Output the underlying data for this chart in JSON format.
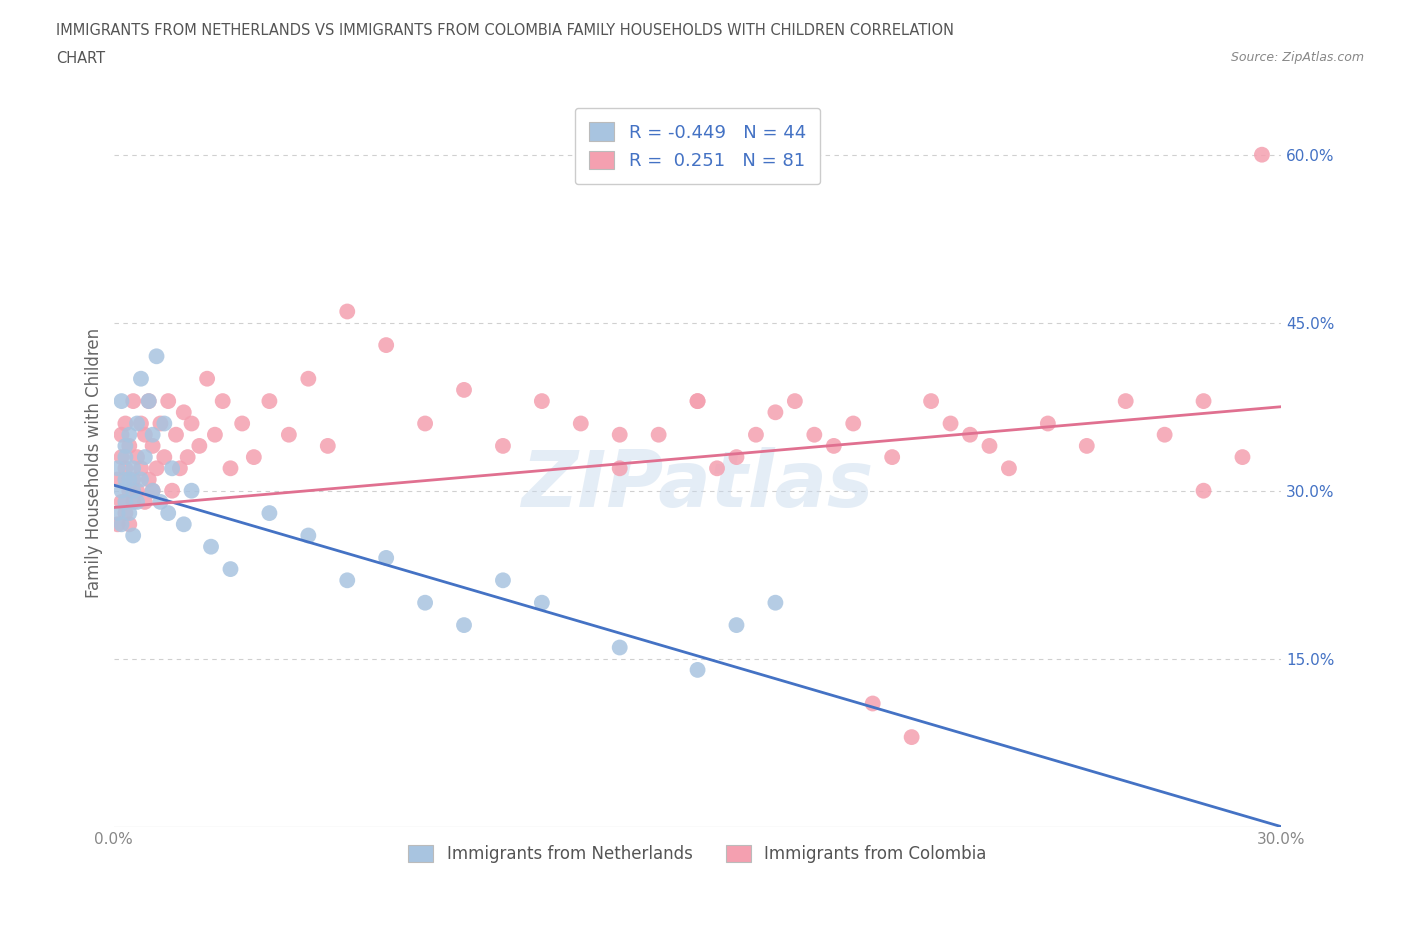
{
  "title_line1": "IMMIGRANTS FROM NETHERLANDS VS IMMIGRANTS FROM COLOMBIA FAMILY HOUSEHOLDS WITH CHILDREN CORRELATION",
  "title_line2": "CHART",
  "source": "Source: ZipAtlas.com",
  "ylabel": "Family Households with Children",
  "xlim": [
    0.0,
    0.3
  ],
  "ylim": [
    0.0,
    0.65
  ],
  "xticks": [
    0.0,
    0.05,
    0.1,
    0.15,
    0.2,
    0.25,
    0.3
  ],
  "xticklabels": [
    "0.0%",
    "",
    "",
    "",
    "",
    "",
    "30.0%"
  ],
  "yticks": [
    0.0,
    0.15,
    0.3,
    0.45,
    0.6
  ],
  "ytick_right_labels": [
    "",
    "15.0%",
    "30.0%",
    "45.0%",
    "60.0%"
  ],
  "netherlands_R": -0.449,
  "netherlands_N": 44,
  "colombia_R": 0.251,
  "colombia_N": 81,
  "netherlands_color": "#a8c4e0",
  "colombia_color": "#f4a0b0",
  "netherlands_line_color": "#4472c4",
  "colombia_line_color": "#e07090",
  "legend_netherlands": "Immigrants from Netherlands",
  "legend_colombia": "Immigrants from Colombia",
  "watermark": "ZIPatlas",
  "background_color": "#ffffff",
  "grid_color": "#d0d0d0",
  "title_color": "#555555",
  "axis_label_color": "#666666",
  "tick_color": "#888888",
  "right_tick_color": "#4472c4",
  "legend_text_color": "#4472c4",
  "nl_trend_x0": 0.0,
  "nl_trend_y0": 0.305,
  "nl_trend_x1": 0.3,
  "nl_trend_y1": 0.0,
  "co_trend_x0": 0.0,
  "co_trend_y0": 0.285,
  "co_trend_x1": 0.3,
  "co_trend_y1": 0.375,
  "netherlands_x": [
    0.001,
    0.001,
    0.002,
    0.002,
    0.002,
    0.003,
    0.003,
    0.003,
    0.003,
    0.004,
    0.004,
    0.004,
    0.005,
    0.005,
    0.005,
    0.006,
    0.006,
    0.007,
    0.007,
    0.008,
    0.009,
    0.01,
    0.01,
    0.011,
    0.012,
    0.013,
    0.014,
    0.015,
    0.018,
    0.02,
    0.025,
    0.03,
    0.04,
    0.05,
    0.06,
    0.07,
    0.08,
    0.09,
    0.1,
    0.11,
    0.13,
    0.15,
    0.16,
    0.17
  ],
  "netherlands_y": [
    0.32,
    0.28,
    0.3,
    0.38,
    0.27,
    0.31,
    0.34,
    0.29,
    0.33,
    0.28,
    0.31,
    0.35,
    0.3,
    0.26,
    0.32,
    0.29,
    0.36,
    0.31,
    0.4,
    0.33,
    0.38,
    0.3,
    0.35,
    0.42,
    0.29,
    0.36,
    0.28,
    0.32,
    0.27,
    0.3,
    0.25,
    0.23,
    0.28,
    0.26,
    0.22,
    0.24,
    0.2,
    0.18,
    0.22,
    0.2,
    0.16,
    0.14,
    0.18,
    0.2
  ],
  "colombia_x": [
    0.001,
    0.001,
    0.002,
    0.002,
    0.002,
    0.003,
    0.003,
    0.003,
    0.004,
    0.004,
    0.004,
    0.005,
    0.005,
    0.005,
    0.006,
    0.006,
    0.007,
    0.007,
    0.008,
    0.008,
    0.009,
    0.009,
    0.01,
    0.01,
    0.011,
    0.012,
    0.013,
    0.014,
    0.015,
    0.016,
    0.017,
    0.018,
    0.019,
    0.02,
    0.022,
    0.024,
    0.026,
    0.028,
    0.03,
    0.033,
    0.036,
    0.04,
    0.045,
    0.05,
    0.055,
    0.06,
    0.07,
    0.08,
    0.09,
    0.1,
    0.11,
    0.12,
    0.13,
    0.14,
    0.15,
    0.16,
    0.17,
    0.18,
    0.19,
    0.2,
    0.21,
    0.22,
    0.23,
    0.24,
    0.25,
    0.26,
    0.27,
    0.28,
    0.13,
    0.15,
    0.155,
    0.165,
    0.175,
    0.185,
    0.195,
    0.205,
    0.215,
    0.225,
    0.28,
    0.29,
    0.295
  ],
  "colombia_y": [
    0.31,
    0.27,
    0.33,
    0.29,
    0.35,
    0.28,
    0.32,
    0.36,
    0.3,
    0.34,
    0.27,
    0.31,
    0.38,
    0.29,
    0.33,
    0.3,
    0.36,
    0.32,
    0.35,
    0.29,
    0.38,
    0.31,
    0.34,
    0.3,
    0.32,
    0.36,
    0.33,
    0.38,
    0.3,
    0.35,
    0.32,
    0.37,
    0.33,
    0.36,
    0.34,
    0.4,
    0.35,
    0.38,
    0.32,
    0.36,
    0.33,
    0.38,
    0.35,
    0.4,
    0.34,
    0.46,
    0.43,
    0.36,
    0.39,
    0.34,
    0.38,
    0.36,
    0.32,
    0.35,
    0.38,
    0.33,
    0.37,
    0.35,
    0.36,
    0.33,
    0.38,
    0.35,
    0.32,
    0.36,
    0.34,
    0.38,
    0.35,
    0.3,
    0.35,
    0.38,
    0.32,
    0.35,
    0.38,
    0.34,
    0.11,
    0.08,
    0.36,
    0.34,
    0.38,
    0.33,
    0.6
  ]
}
